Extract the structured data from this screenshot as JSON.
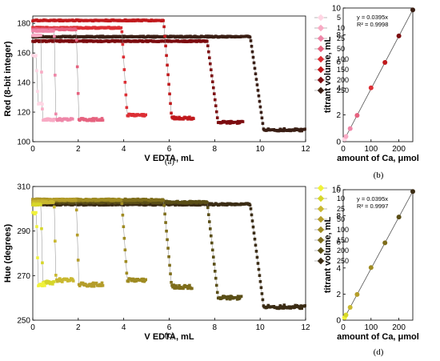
{
  "series_labels": [
    "5",
    "10",
    "25",
    "50",
    "100",
    "150",
    "200",
    "250"
  ],
  "chart_data": [
    {
      "id": "a",
      "type": "scatter",
      "panel_label": "(a)",
      "xlabel": "V EDTA, mL",
      "ylabel": "Red (8-bit integer)",
      "xlim": [
        0,
        12
      ],
      "ylim": [
        100,
        185
      ],
      "xticks": [
        "0",
        "2",
        "4",
        "6",
        "8",
        "10",
        "12"
      ],
      "yticks": [
        "100",
        "120",
        "140",
        "160",
        "180"
      ],
      "grid": false,
      "legend": "right",
      "colors": [
        "#ffd6e4",
        "#f8aac4",
        "#ee86a8",
        "#e6627f",
        "#dd2f35",
        "#c0191c",
        "#7d0d10",
        "#3a1e14"
      ],
      "series": [
        {
          "name": "5",
          "endpoint": 0.19,
          "start": 0.0,
          "end": 0.45,
          "before": 158,
          "after": 126
        },
        {
          "name": "10",
          "endpoint": 0.39,
          "start": 0.0,
          "end": 0.95,
          "before": 172,
          "after": 115
        },
        {
          "name": "25",
          "endpoint": 0.98,
          "start": 0.0,
          "end": 1.75,
          "before": 175,
          "after": 115
        },
        {
          "name": "50",
          "endpoint": 1.97,
          "start": 0.0,
          "end": 3.1,
          "before": 176,
          "after": 115
        },
        {
          "name": "100",
          "endpoint": 4.03,
          "start": 0.0,
          "end": 5.0,
          "before": 177,
          "after": 118
        },
        {
          "name": "150",
          "endpoint": 5.93,
          "start": 0.0,
          "end": 7.1,
          "before": 182,
          "after": 116
        },
        {
          "name": "200",
          "endpoint": 7.91,
          "start": 0.0,
          "end": 9.25,
          "before": 168,
          "after": 113
        },
        {
          "name": "250",
          "endpoint": 9.86,
          "start": 0.0,
          "end": 12.0,
          "before": 171,
          "after": 108
        }
      ]
    },
    {
      "id": "b",
      "type": "scatter",
      "panel_label": "(b)",
      "xlabel": "amount of Ca, μmol",
      "ylabel": "titrant volume, mL",
      "xlim": [
        0,
        250
      ],
      "ylim": [
        0,
        10
      ],
      "xticks": [
        "0",
        "100",
        "200"
      ],
      "yticks": [
        "0",
        "2",
        "4",
        "6",
        "8",
        "10"
      ],
      "equation": "y = 0.0395x",
      "r2": "R² = 0.9998",
      "fit_slope": 0.0395,
      "x": [
        5,
        10,
        25,
        50,
        100,
        150,
        200,
        250
      ],
      "y": [
        0.19,
        0.39,
        0.98,
        1.97,
        4.03,
        5.93,
        7.91,
        9.86
      ],
      "colors": [
        "#ffd6e4",
        "#f8aac4",
        "#ee86a8",
        "#e6627f",
        "#dd2f35",
        "#c0191c",
        "#7d0d10",
        "#3a1e14"
      ]
    },
    {
      "id": "c",
      "type": "scatter",
      "panel_label": "(c)",
      "xlabel": "V EDTA, mL",
      "ylabel": "Hue (degrees)",
      "xlim": [
        0,
        12
      ],
      "ylim": [
        250,
        310
      ],
      "xticks": [
        "0",
        "2",
        "4",
        "6",
        "8",
        "10",
        "12"
      ],
      "yticks": [
        "250",
        "270",
        "290",
        "310"
      ],
      "grid": false,
      "legend": "right",
      "colors": [
        "#f0f23a",
        "#d6d62a",
        "#c9b830",
        "#b49d2a",
        "#9f8b22",
        "#7e6d1b",
        "#5a4e16",
        "#3b2c14"
      ],
      "series": [
        {
          "name": "5",
          "endpoint": 0.2,
          "start": 0.0,
          "end": 0.55,
          "before": 298,
          "after": 266
        },
        {
          "name": "10",
          "endpoint": 0.4,
          "start": 0.0,
          "end": 0.95,
          "before": 302,
          "after": 267
        },
        {
          "name": "25",
          "endpoint": 0.98,
          "start": 0.0,
          "end": 1.8,
          "before": 303,
          "after": 268
        },
        {
          "name": "50",
          "endpoint": 1.97,
          "start": 0.0,
          "end": 3.1,
          "before": 304,
          "after": 266
        },
        {
          "name": "100",
          "endpoint": 4.03,
          "start": 0.0,
          "end": 5.0,
          "before": 304,
          "after": 268
        },
        {
          "name": "150",
          "endpoint": 5.93,
          "start": 0.0,
          "end": 7.0,
          "before": 304,
          "after": 265
        },
        {
          "name": "200",
          "endpoint": 7.91,
          "start": 0.0,
          "end": 9.2,
          "before": 303,
          "after": 260
        },
        {
          "name": "250",
          "endpoint": 9.86,
          "start": 0.0,
          "end": 12.0,
          "before": 302,
          "after": 256
        }
      ]
    },
    {
      "id": "d",
      "type": "scatter",
      "panel_label": "(d)",
      "xlabel": "amount of Ca, μmol",
      "ylabel": "titrant volume, mL",
      "xlim": [
        0,
        250
      ],
      "ylim": [
        0,
        10
      ],
      "xticks": [
        "0",
        "100",
        "200"
      ],
      "yticks": [
        "0",
        "2",
        "4",
        "6",
        "8",
        "10"
      ],
      "equation": "y = 0.0395x",
      "r2": "R² = 0.9997",
      "fit_slope": 0.0395,
      "x": [
        5,
        10,
        25,
        50,
        100,
        150,
        200,
        250
      ],
      "y": [
        0.2,
        0.4,
        0.98,
        1.97,
        4.03,
        5.93,
        7.91,
        9.86
      ],
      "colors": [
        "#f0f23a",
        "#d6d62a",
        "#c9b830",
        "#b49d2a",
        "#9f8b22",
        "#7e6d1b",
        "#5a4e16",
        "#3b2c14"
      ]
    }
  ]
}
